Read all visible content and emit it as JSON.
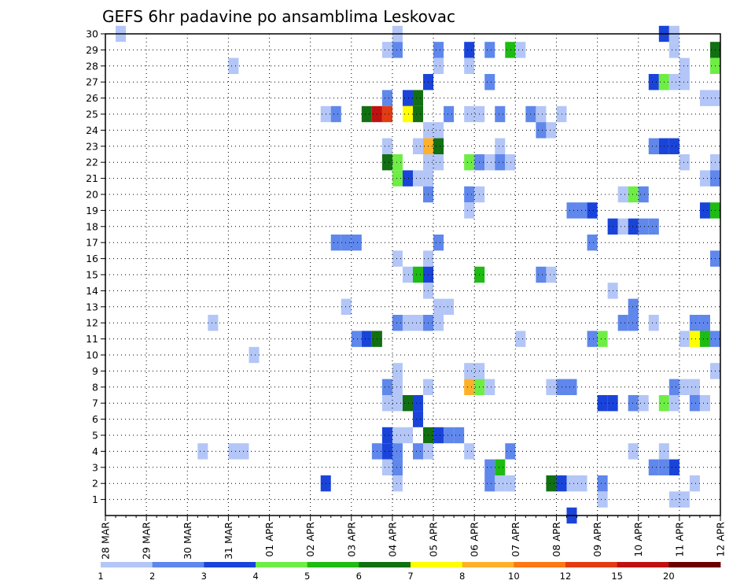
{
  "chart_data": {
    "type": "heatmap",
    "title": "GEFS 6hr padavine po ansamblima Leskovac",
    "xlabel": "",
    "ylabel": "",
    "x_ticks": [
      "28 MAR",
      "29 MAR",
      "30 MAR",
      "31 MAR",
      "01 APR",
      "02 APR",
      "03 APR",
      "04 APR",
      "05 APR",
      "06 APR",
      "07 APR",
      "08 APR",
      "09 APR",
      "10 APR",
      "11 APR",
      "12 APR"
    ],
    "x_range_days": [
      0,
      15
    ],
    "y_ticks": [
      1,
      2,
      3,
      4,
      5,
      6,
      7,
      8,
      9,
      10,
      11,
      12,
      13,
      14,
      15,
      16,
      17,
      18,
      19,
      20,
      21,
      22,
      23,
      24,
      25,
      26,
      27,
      28,
      29,
      30
    ],
    "ylim": [
      0,
      30
    ],
    "grid": true,
    "colorbar": {
      "labels": [
        "1",
        "2",
        "3",
        "4",
        "5",
        "6",
        "7",
        "8",
        "10",
        "12",
        "15",
        "20"
      ],
      "colors": [
        "#b3c6f7",
        "#5f87ec",
        "#1a44d9",
        "#6eed45",
        "#1ebb12",
        "#126f12",
        "#ffff00",
        "#fdb12b",
        "#fd7712",
        "#e33b12",
        "#be1212",
        "#6b0000"
      ]
    },
    "cells": [
      {
        "m": 30,
        "t": 0.25,
        "c": 0
      },
      {
        "m": 30,
        "t": 7.0,
        "c": 0
      },
      {
        "m": 30,
        "t": 13.5,
        "c": 2
      },
      {
        "m": 30,
        "t": 13.75,
        "c": 0
      },
      {
        "m": 29,
        "t": 6.75,
        "c": 0
      },
      {
        "m": 29,
        "t": 7.0,
        "c": 1
      },
      {
        "m": 29,
        "t": 8.0,
        "c": 1
      },
      {
        "m": 29,
        "t": 8.75,
        "c": 2
      },
      {
        "m": 29,
        "t": 9.25,
        "c": 1
      },
      {
        "m": 29,
        "t": 9.75,
        "c": 4
      },
      {
        "m": 29,
        "t": 10.0,
        "c": 0
      },
      {
        "m": 29,
        "t": 13.75,
        "c": 0
      },
      {
        "m": 29,
        "t": 14.75,
        "c": 5
      },
      {
        "m": 28,
        "t": 3.0,
        "c": 0
      },
      {
        "m": 28,
        "t": 8.0,
        "c": 0
      },
      {
        "m": 28,
        "t": 8.75,
        "c": 0
      },
      {
        "m": 28,
        "t": 14.0,
        "c": 0
      },
      {
        "m": 28,
        "t": 14.75,
        "c": 3
      },
      {
        "m": 27,
        "t": 7.75,
        "c": 2
      },
      {
        "m": 27,
        "t": 9.25,
        "c": 1
      },
      {
        "m": 27,
        "t": 13.25,
        "c": 2
      },
      {
        "m": 27,
        "t": 13.5,
        "c": 3
      },
      {
        "m": 27,
        "t": 13.75,
        "c": 0
      },
      {
        "m": 27,
        "t": 14.0,
        "c": 0
      },
      {
        "m": 26,
        "t": 6.75,
        "c": 1
      },
      {
        "m": 26,
        "t": 7.25,
        "c": 2
      },
      {
        "m": 26,
        "t": 7.5,
        "c": 5
      },
      {
        "m": 26,
        "t": 14.5,
        "c": 0
      },
      {
        "m": 26,
        "t": 14.75,
        "c": 0
      },
      {
        "m": 25,
        "t": 5.25,
        "c": 0
      },
      {
        "m": 25,
        "t": 5.5,
        "c": 1
      },
      {
        "m": 25,
        "t": 6.25,
        "c": 5
      },
      {
        "m": 25,
        "t": 6.5,
        "c": 10
      },
      {
        "m": 25,
        "t": 6.75,
        "c": 9
      },
      {
        "m": 25,
        "t": 7.25,
        "c": 6
      },
      {
        "m": 25,
        "t": 7.5,
        "c": 5
      },
      {
        "m": 25,
        "t": 8.25,
        "c": 1
      },
      {
        "m": 25,
        "t": 8.75,
        "c": 0
      },
      {
        "m": 25,
        "t": 9.0,
        "c": 0
      },
      {
        "m": 25,
        "t": 9.5,
        "c": 1
      },
      {
        "m": 25,
        "t": 10.25,
        "c": 1
      },
      {
        "m": 25,
        "t": 10.5,
        "c": 0
      },
      {
        "m": 25,
        "t": 11.0,
        "c": 0
      },
      {
        "m": 24,
        "t": 7.75,
        "c": 0
      },
      {
        "m": 24,
        "t": 8.0,
        "c": 0
      },
      {
        "m": 24,
        "t": 10.5,
        "c": 1
      },
      {
        "m": 24,
        "t": 10.75,
        "c": 0
      },
      {
        "m": 23,
        "t": 6.75,
        "c": 0
      },
      {
        "m": 23,
        "t": 7.5,
        "c": 0
      },
      {
        "m": 23,
        "t": 7.75,
        "c": 7
      },
      {
        "m": 23,
        "t": 8.0,
        "c": 5
      },
      {
        "m": 23,
        "t": 9.5,
        "c": 0
      },
      {
        "m": 23,
        "t": 13.25,
        "c": 1
      },
      {
        "m": 23,
        "t": 13.5,
        "c": 2
      },
      {
        "m": 23,
        "t": 13.75,
        "c": 2
      },
      {
        "m": 22,
        "t": 6.75,
        "c": 5
      },
      {
        "m": 22,
        "t": 7.0,
        "c": 3
      },
      {
        "m": 22,
        "t": 7.75,
        "c": 0
      },
      {
        "m": 22,
        "t": 8.0,
        "c": 0
      },
      {
        "m": 22,
        "t": 8.75,
        "c": 3
      },
      {
        "m": 22,
        "t": 9.0,
        "c": 1
      },
      {
        "m": 22,
        "t": 9.25,
        "c": 0
      },
      {
        "m": 22,
        "t": 9.5,
        "c": 1
      },
      {
        "m": 22,
        "t": 9.75,
        "c": 0
      },
      {
        "m": 22,
        "t": 14.0,
        "c": 0
      },
      {
        "m": 22,
        "t": 14.75,
        "c": 0
      },
      {
        "m": 21,
        "t": 7.0,
        "c": 3
      },
      {
        "m": 21,
        "t": 7.25,
        "c": 2
      },
      {
        "m": 21,
        "t": 7.5,
        "c": 0
      },
      {
        "m": 21,
        "t": 7.75,
        "c": 0
      },
      {
        "m": 21,
        "t": 14.5,
        "c": 0
      },
      {
        "m": 21,
        "t": 14.75,
        "c": 1
      },
      {
        "m": 20,
        "t": 7.75,
        "c": 1
      },
      {
        "m": 20,
        "t": 8.75,
        "c": 1
      },
      {
        "m": 20,
        "t": 9.0,
        "c": 0
      },
      {
        "m": 20,
        "t": 12.5,
        "c": 0
      },
      {
        "m": 20,
        "t": 12.75,
        "c": 3
      },
      {
        "m": 20,
        "t": 13.0,
        "c": 1
      },
      {
        "m": 19,
        "t": 8.75,
        "c": 0
      },
      {
        "m": 19,
        "t": 11.25,
        "c": 1
      },
      {
        "m": 19,
        "t": 11.5,
        "c": 1
      },
      {
        "m": 19,
        "t": 11.75,
        "c": 2
      },
      {
        "m": 19,
        "t": 14.5,
        "c": 2
      },
      {
        "m": 19,
        "t": 14.75,
        "c": 4
      },
      {
        "m": 18,
        "t": 12.25,
        "c": 2
      },
      {
        "m": 18,
        "t": 12.5,
        "c": 0
      },
      {
        "m": 18,
        "t": 12.75,
        "c": 2
      },
      {
        "m": 18,
        "t": 13.0,
        "c": 1
      },
      {
        "m": 18,
        "t": 13.25,
        "c": 1
      },
      {
        "m": 17,
        "t": 5.5,
        "c": 1
      },
      {
        "m": 17,
        "t": 5.75,
        "c": 1
      },
      {
        "m": 17,
        "t": 6.0,
        "c": 1
      },
      {
        "m": 17,
        "t": 8.0,
        "c": 1
      },
      {
        "m": 17,
        "t": 11.75,
        "c": 1
      },
      {
        "m": 16,
        "t": 7.0,
        "c": 0
      },
      {
        "m": 16,
        "t": 7.75,
        "c": 0
      },
      {
        "m": 16,
        "t": 14.75,
        "c": 1
      },
      {
        "m": 15,
        "t": 7.25,
        "c": 0
      },
      {
        "m": 15,
        "t": 7.5,
        "c": 4
      },
      {
        "m": 15,
        "t": 7.75,
        "c": 2
      },
      {
        "m": 15,
        "t": 9.0,
        "c": 4
      },
      {
        "m": 15,
        "t": 10.5,
        "c": 1
      },
      {
        "m": 15,
        "t": 10.75,
        "c": 0
      },
      {
        "m": 14,
        "t": 7.75,
        "c": 0
      },
      {
        "m": 14,
        "t": 12.25,
        "c": 0
      },
      {
        "m": 13,
        "t": 5.75,
        "c": 0
      },
      {
        "m": 13,
        "t": 8.0,
        "c": 0
      },
      {
        "m": 13,
        "t": 8.25,
        "c": 0
      },
      {
        "m": 13,
        "t": 12.75,
        "c": 1
      },
      {
        "m": 12,
        "t": 2.5,
        "c": 0
      },
      {
        "m": 12,
        "t": 7.0,
        "c": 1
      },
      {
        "m": 12,
        "t": 7.25,
        "c": 0
      },
      {
        "m": 12,
        "t": 7.5,
        "c": 0
      },
      {
        "m": 12,
        "t": 7.75,
        "c": 1
      },
      {
        "m": 12,
        "t": 8.0,
        "c": 0
      },
      {
        "m": 12,
        "t": 12.5,
        "c": 1
      },
      {
        "m": 12,
        "t": 12.75,
        "c": 1
      },
      {
        "m": 12,
        "t": 13.25,
        "c": 0
      },
      {
        "m": 12,
        "t": 14.25,
        "c": 1
      },
      {
        "m": 12,
        "t": 14.5,
        "c": 1
      },
      {
        "m": 11,
        "t": 6.0,
        "c": 1
      },
      {
        "m": 11,
        "t": 6.25,
        "c": 2
      },
      {
        "m": 11,
        "t": 6.5,
        "c": 5
      },
      {
        "m": 11,
        "t": 10.0,
        "c": 0
      },
      {
        "m": 11,
        "t": 11.75,
        "c": 1
      },
      {
        "m": 11,
        "t": 12.0,
        "c": 3
      },
      {
        "m": 11,
        "t": 14.0,
        "c": 0
      },
      {
        "m": 11,
        "t": 14.25,
        "c": 6
      },
      {
        "m": 11,
        "t": 14.5,
        "c": 4
      },
      {
        "m": 11,
        "t": 14.75,
        "c": 1
      },
      {
        "m": 10,
        "t": 3.5,
        "c": 0
      },
      {
        "m": 9,
        "t": 7.0,
        "c": 0
      },
      {
        "m": 9,
        "t": 8.75,
        "c": 0
      },
      {
        "m": 9,
        "t": 9.0,
        "c": 0
      },
      {
        "m": 9,
        "t": 14.75,
        "c": 0
      },
      {
        "m": 8,
        "t": 6.75,
        "c": 1
      },
      {
        "m": 8,
        "t": 7.0,
        "c": 0
      },
      {
        "m": 8,
        "t": 7.75,
        "c": 0
      },
      {
        "m": 8,
        "t": 8.75,
        "c": 7
      },
      {
        "m": 8,
        "t": 9.0,
        "c": 3
      },
      {
        "m": 8,
        "t": 9.25,
        "c": 0
      },
      {
        "m": 8,
        "t": 10.75,
        "c": 0
      },
      {
        "m": 8,
        "t": 11.0,
        "c": 1
      },
      {
        "m": 8,
        "t": 11.25,
        "c": 1
      },
      {
        "m": 8,
        "t": 13.75,
        "c": 1
      },
      {
        "m": 8,
        "t": 14.0,
        "c": 0
      },
      {
        "m": 8,
        "t": 14.25,
        "c": 0
      },
      {
        "m": 7,
        "t": 6.75,
        "c": 0
      },
      {
        "m": 7,
        "t": 7.0,
        "c": 0
      },
      {
        "m": 7,
        "t": 7.25,
        "c": 5
      },
      {
        "m": 7,
        "t": 7.5,
        "c": 2
      },
      {
        "m": 7,
        "t": 12.0,
        "c": 2
      },
      {
        "m": 7,
        "t": 12.25,
        "c": 2
      },
      {
        "m": 7,
        "t": 12.75,
        "c": 1
      },
      {
        "m": 7,
        "t": 13.0,
        "c": 0
      },
      {
        "m": 7,
        "t": 13.5,
        "c": 3
      },
      {
        "m": 7,
        "t": 13.75,
        "c": 0
      },
      {
        "m": 7,
        "t": 14.25,
        "c": 1
      },
      {
        "m": 7,
        "t": 14.5,
        "c": 0
      },
      {
        "m": 6,
        "t": 7.5,
        "c": 2
      },
      {
        "m": 5,
        "t": 6.75,
        "c": 2
      },
      {
        "m": 5,
        "t": 7.0,
        "c": 0
      },
      {
        "m": 5,
        "t": 7.25,
        "c": 0
      },
      {
        "m": 5,
        "t": 7.75,
        "c": 5
      },
      {
        "m": 5,
        "t": 8.0,
        "c": 2
      },
      {
        "m": 5,
        "t": 8.25,
        "c": 1
      },
      {
        "m": 5,
        "t": 8.5,
        "c": 1
      },
      {
        "m": 4,
        "t": 2.25,
        "c": 0
      },
      {
        "m": 4,
        "t": 3.0,
        "c": 0
      },
      {
        "m": 4,
        "t": 3.25,
        "c": 0
      },
      {
        "m": 4,
        "t": 6.5,
        "c": 1
      },
      {
        "m": 4,
        "t": 6.75,
        "c": 2
      },
      {
        "m": 4,
        "t": 7.0,
        "c": 1
      },
      {
        "m": 4,
        "t": 7.5,
        "c": 1
      },
      {
        "m": 4,
        "t": 7.75,
        "c": 0
      },
      {
        "m": 4,
        "t": 8.75,
        "c": 0
      },
      {
        "m": 4,
        "t": 9.75,
        "c": 1
      },
      {
        "m": 4,
        "t": 12.75,
        "c": 0
      },
      {
        "m": 4,
        "t": 13.5,
        "c": 0
      },
      {
        "m": 3,
        "t": 6.75,
        "c": 0
      },
      {
        "m": 3,
        "t": 7.0,
        "c": 1
      },
      {
        "m": 3,
        "t": 9.25,
        "c": 1
      },
      {
        "m": 3,
        "t": 9.5,
        "c": 4
      },
      {
        "m": 3,
        "t": 13.25,
        "c": 1
      },
      {
        "m": 3,
        "t": 13.5,
        "c": 1
      },
      {
        "m": 3,
        "t": 13.75,
        "c": 2
      },
      {
        "m": 2,
        "t": 5.25,
        "c": 2
      },
      {
        "m": 2,
        "t": 7.0,
        "c": 0
      },
      {
        "m": 2,
        "t": 9.25,
        "c": 1
      },
      {
        "m": 2,
        "t": 9.5,
        "c": 0
      },
      {
        "m": 2,
        "t": 9.75,
        "c": 0
      },
      {
        "m": 2,
        "t": 10.75,
        "c": 5
      },
      {
        "m": 2,
        "t": 11.0,
        "c": 2
      },
      {
        "m": 2,
        "t": 11.25,
        "c": 0
      },
      {
        "m": 2,
        "t": 11.5,
        "c": 0
      },
      {
        "m": 2,
        "t": 12.0,
        "c": 1
      },
      {
        "m": 2,
        "t": 14.25,
        "c": 0
      },
      {
        "m": 1,
        "t": 12.0,
        "c": 0
      },
      {
        "m": 1,
        "t": 13.75,
        "c": 0
      },
      {
        "m": 1,
        "t": 14.0,
        "c": 0
      },
      {
        "m": 0,
        "t": 11.25,
        "c": 2
      }
    ],
    "cells_note": ""
  }
}
